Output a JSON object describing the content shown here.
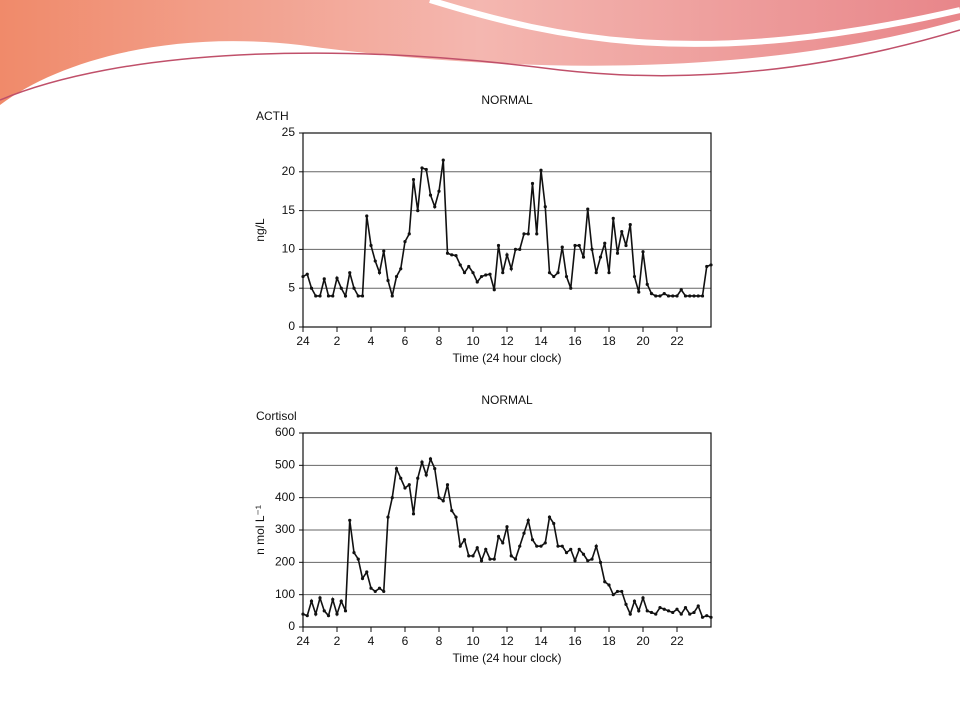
{
  "chart_data": [
    {
      "type": "line",
      "title": "NORMAL",
      "label": "ACTH",
      "ylabel": "ng/L",
      "xlabel": "Time (24 hour clock)",
      "color": "#111111",
      "grid": true,
      "x": [
        0,
        0.25,
        0.5,
        0.75,
        1,
        1.25,
        1.5,
        1.75,
        2,
        2.25,
        2.5,
        2.75,
        3,
        3.25,
        3.5,
        3.75,
        4,
        4.25,
        4.5,
        4.75,
        5,
        5.25,
        5.5,
        5.75,
        6,
        6.25,
        6.5,
        6.75,
        7,
        7.25,
        7.5,
        7.75,
        8,
        8.25,
        8.5,
        8.75,
        9,
        9.25,
        9.5,
        9.75,
        10,
        10.25,
        10.5,
        10.75,
        11,
        11.25,
        11.5,
        11.75,
        12,
        12.25,
        12.5,
        12.75,
        13,
        13.25,
        13.5,
        13.75,
        14,
        14.25,
        14.5,
        14.75,
        15,
        15.25,
        15.5,
        15.75,
        16,
        16.25,
        16.5,
        16.75,
        17,
        17.25,
        17.5,
        17.75,
        18,
        18.25,
        18.5,
        18.75,
        19,
        19.25,
        19.5,
        19.75,
        20,
        20.25,
        20.5,
        20.75,
        21,
        21.25,
        21.5,
        21.75,
        22,
        22.25,
        22.5,
        22.75,
        23,
        23.25,
        23.5,
        23.75,
        24
      ],
      "values": [
        6.5,
        6.8,
        5,
        4,
        4,
        6.2,
        4,
        4,
        6.3,
        5,
        4,
        7,
        5,
        4,
        4,
        14.3,
        10.5,
        8.5,
        7,
        9.8,
        6,
        4,
        6.5,
        7.5,
        11,
        12,
        19,
        15,
        20.5,
        20.3,
        17,
        15.5,
        17.5,
        21.5,
        9.5,
        9.3,
        9.2,
        8,
        7,
        7.8,
        7,
        5.8,
        6.5,
        6.7,
        6.8,
        4.8,
        10.5,
        7,
        9.3,
        7.5,
        10,
        10,
        12,
        12,
        18.5,
        12,
        20.2,
        15.5,
        7,
        6.5,
        7,
        10.3,
        6.5,
        5,
        10.5,
        10.5,
        9,
        15.2,
        10,
        7,
        9,
        10.8,
        7,
        14,
        9.5,
        12.3,
        10.5,
        13.2,
        6.5,
        4.5,
        9.7,
        5.5,
        4.3,
        4,
        4,
        4.3,
        4,
        4,
        4,
        4.8,
        4,
        4,
        4,
        4,
        4,
        7.8,
        8
      ],
      "xlim": [
        0,
        24
      ],
      "xticks": [
        {
          "value": 0,
          "label": "24"
        },
        2,
        4,
        6,
        8,
        10,
        12,
        14,
        16,
        18,
        20,
        22
      ],
      "ylim": [
        0,
        25
      ],
      "yticks": [
        0,
        5,
        10,
        15,
        20,
        25
      ]
    },
    {
      "type": "line",
      "title": "NORMAL",
      "label": "Cortisol",
      "ylabel": "n mol L⁻¹",
      "xlabel": "Time (24 hour clock)",
      "color": "#111111",
      "grid": true,
      "x": [
        0,
        0.25,
        0.5,
        0.75,
        1,
        1.25,
        1.5,
        1.75,
        2,
        2.25,
        2.5,
        2.75,
        3,
        3.25,
        3.5,
        3.75,
        4,
        4.25,
        4.5,
        4.75,
        5,
        5.25,
        5.5,
        5.75,
        6,
        6.25,
        6.5,
        6.75,
        7,
        7.25,
        7.5,
        7.75,
        8,
        8.25,
        8.5,
        8.75,
        9,
        9.25,
        9.5,
        9.75,
        10,
        10.25,
        10.5,
        10.75,
        11,
        11.25,
        11.5,
        11.75,
        12,
        12.25,
        12.5,
        12.75,
        13,
        13.25,
        13.5,
        13.75,
        14,
        14.25,
        14.5,
        14.75,
        15,
        15.25,
        15.5,
        15.75,
        16,
        16.25,
        16.5,
        16.75,
        17,
        17.25,
        17.5,
        17.75,
        18,
        18.25,
        18.5,
        18.75,
        19,
        19.25,
        19.5,
        19.75,
        20,
        20.25,
        20.5,
        20.75,
        21,
        21.25,
        21.5,
        21.75,
        22,
        22.25,
        22.5,
        22.75,
        23,
        23.25,
        23.5,
        23.75,
        24
      ],
      "values": [
        40,
        35,
        80,
        40,
        90,
        50,
        35,
        85,
        40,
        80,
        50,
        330,
        230,
        210,
        150,
        170,
        120,
        110,
        120,
        110,
        340,
        400,
        490,
        460,
        430,
        440,
        350,
        460,
        510,
        470,
        520,
        490,
        400,
        390,
        440,
        360,
        340,
        250,
        270,
        220,
        220,
        245,
        205,
        240,
        210,
        210,
        280,
        260,
        310,
        220,
        210,
        250,
        290,
        330,
        270,
        250,
        250,
        260,
        340,
        320,
        250,
        250,
        230,
        240,
        205,
        240,
        225,
        205,
        210,
        250,
        200,
        140,
        130,
        100,
        110,
        110,
        70,
        40,
        80,
        50,
        90,
        50,
        45,
        40,
        60,
        55,
        50,
        45,
        55,
        40,
        60,
        40,
        45,
        65,
        30,
        35,
        30
      ],
      "xlim": [
        0,
        24
      ],
      "xticks": [
        {
          "value": 0,
          "label": "24"
        },
        2,
        4,
        6,
        8,
        10,
        12,
        14,
        16,
        18,
        20,
        22
      ],
      "ylim": [
        0,
        600
      ],
      "yticks": [
        0,
        100,
        200,
        300,
        400,
        500,
        600
      ]
    }
  ]
}
